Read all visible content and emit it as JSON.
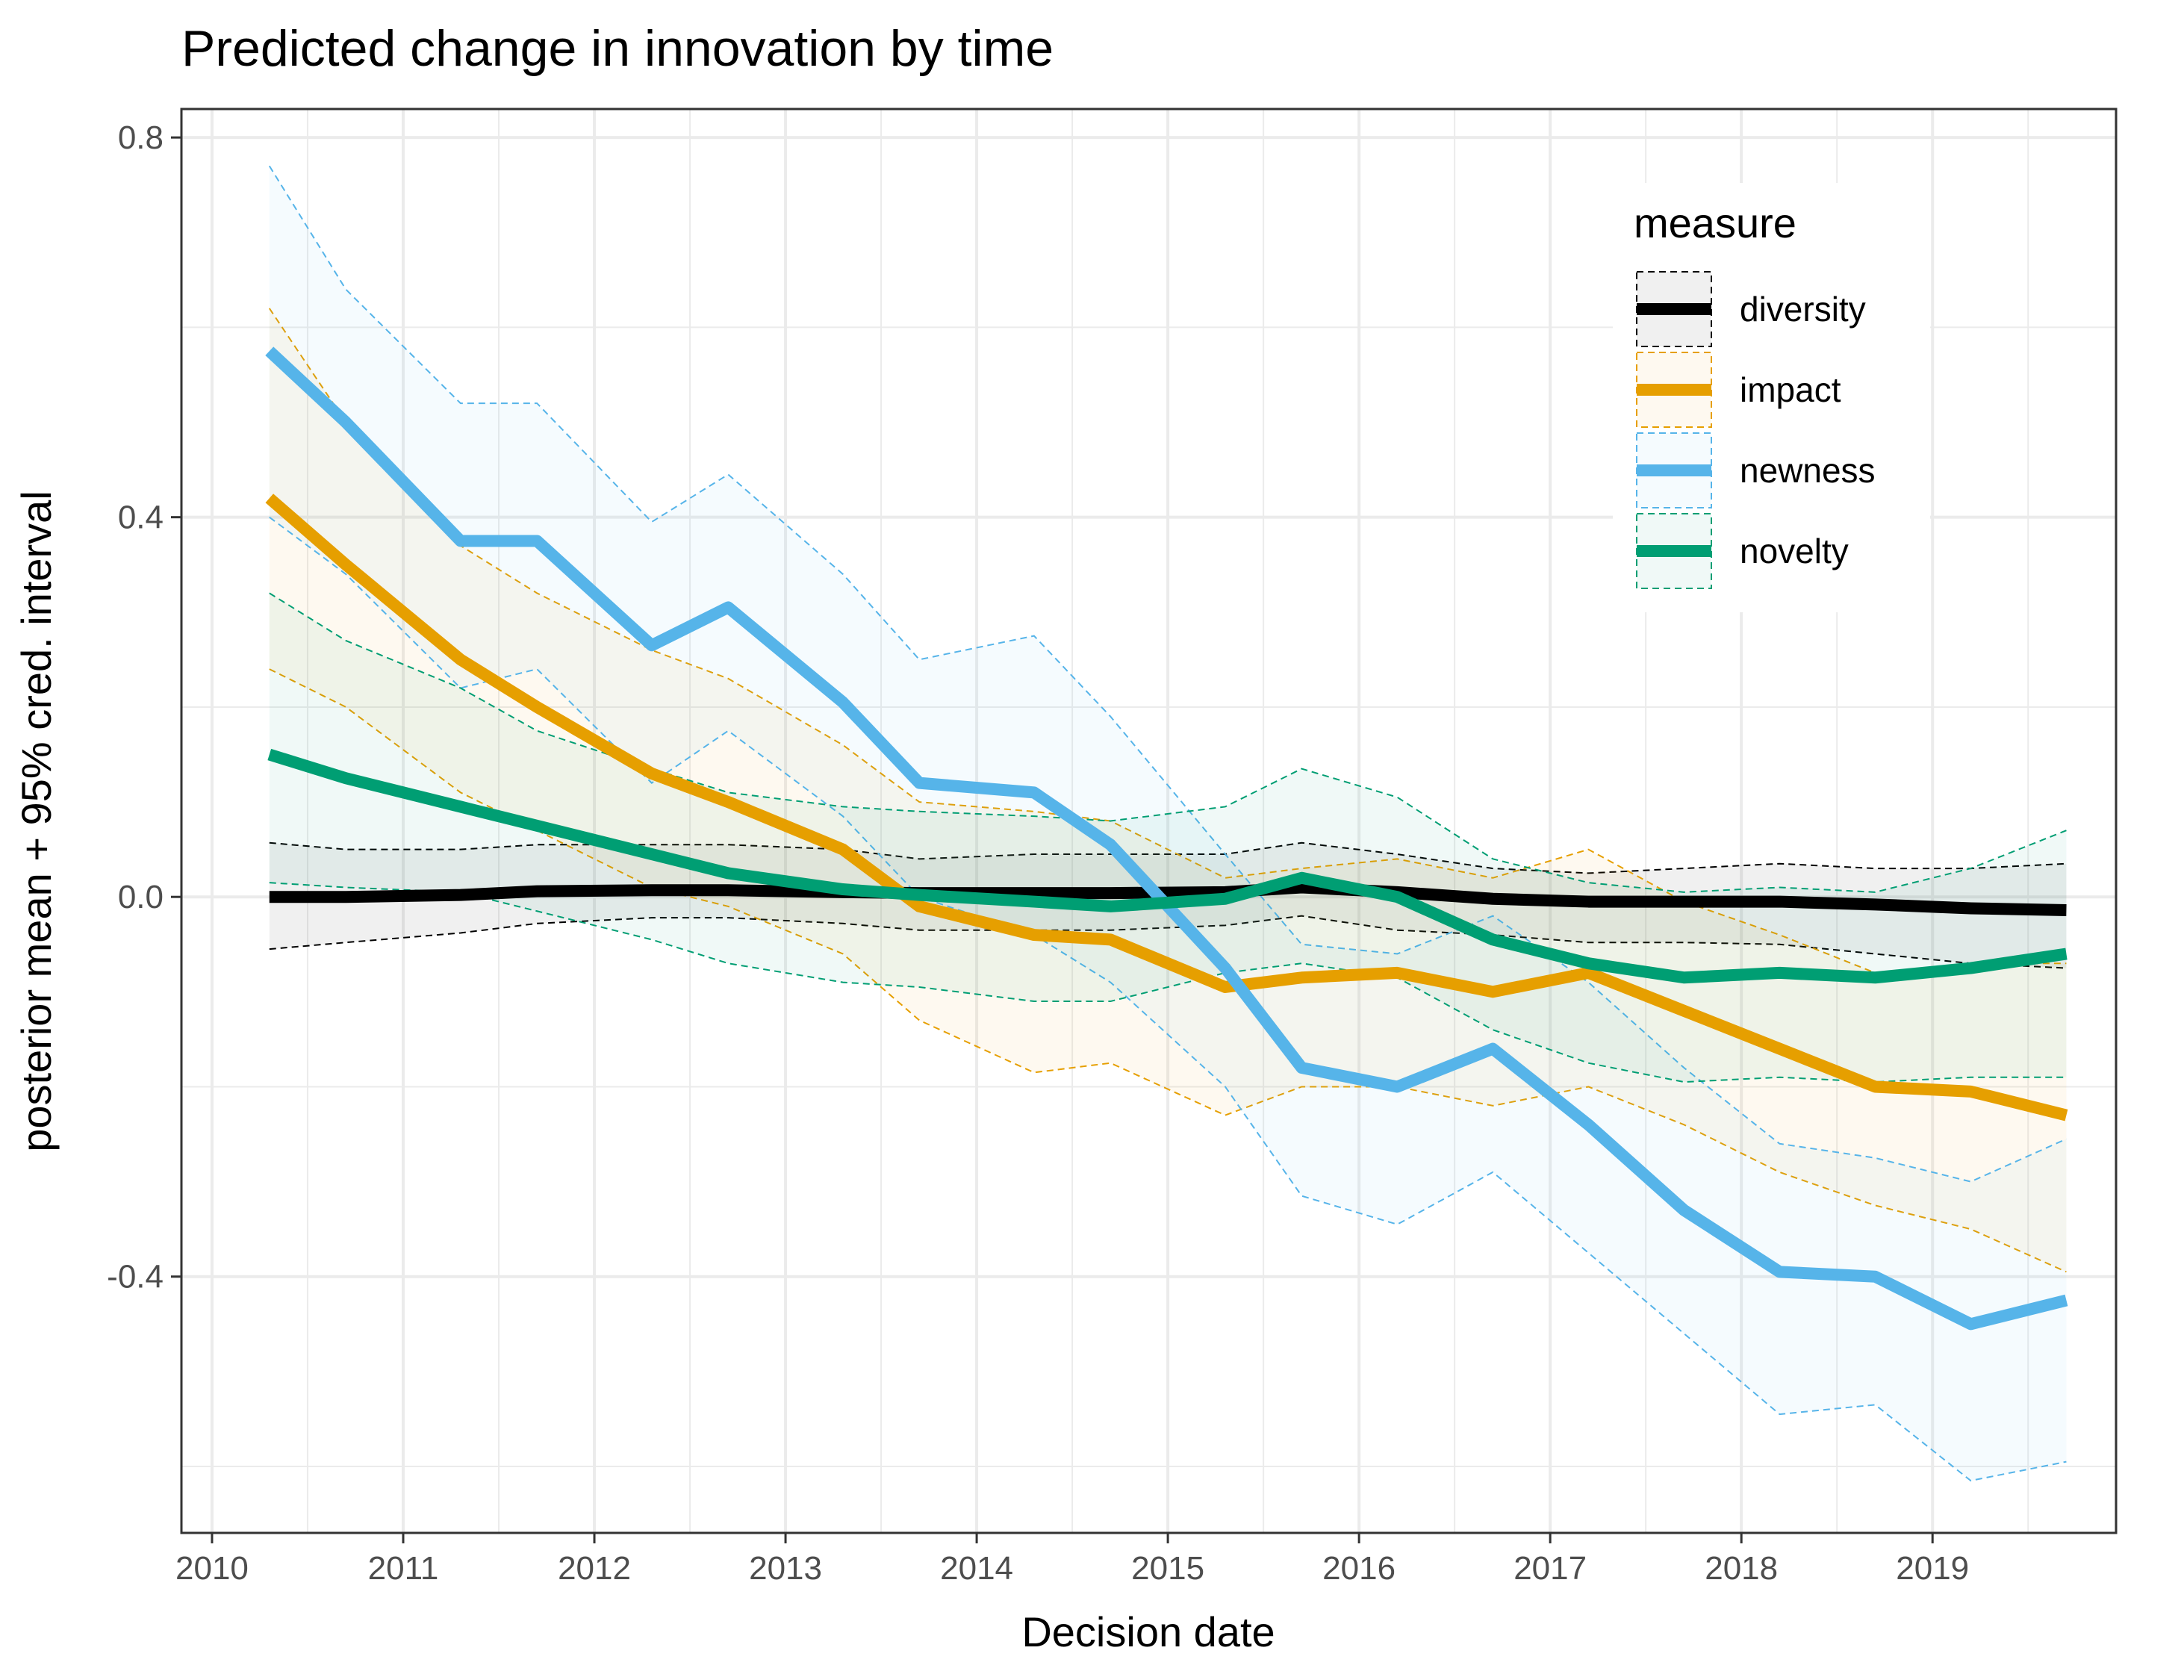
{
  "chart_data": {
    "type": "line",
    "title": "Predicted change in innovation by time",
    "xlabel": "Decision date",
    "ylabel": "posterior mean + 95% cred. interval",
    "xlim": [
      2009.84,
      2019.96
    ],
    "ylim": [
      -0.67,
      0.83
    ],
    "x_ticks": [
      "2010",
      "2011",
      "2012",
      "2013",
      "2014",
      "2015",
      "2016",
      "2017",
      "2018",
      "2019"
    ],
    "y_ticks": [
      "0.8",
      "0.4",
      "0.0",
      "-0.4"
    ],
    "y_tick_values": [
      0.8,
      0.4,
      0.0,
      -0.4
    ],
    "grid": true,
    "legend": {
      "title": "measure",
      "position": "top-right"
    },
    "x": [
      2010.3,
      2010.7,
      2011.3,
      2011.7,
      2012.3,
      2012.7,
      2013.3,
      2013.7,
      2014.3,
      2014.7,
      2015.3,
      2015.7,
      2016.2,
      2016.7,
      2017.2,
      2017.7,
      2018.2,
      2018.7,
      2019.2,
      2019.7
    ],
    "series": [
      {
        "name": "diversity",
        "color": "#000000",
        "mean": [
          0.0,
          0.0,
          0.002,
          0.006,
          0.007,
          0.007,
          0.005,
          0.004,
          0.004,
          0.004,
          0.005,
          0.01,
          0.005,
          -0.002,
          -0.005,
          -0.005,
          -0.005,
          -0.008,
          -0.012,
          -0.014
        ],
        "upper": [
          0.057,
          0.05,
          0.05,
          0.055,
          0.055,
          0.055,
          0.05,
          0.04,
          0.045,
          0.045,
          0.045,
          0.057,
          0.045,
          0.03,
          0.025,
          0.03,
          0.035,
          0.03,
          0.03,
          0.035
        ],
        "lower": [
          -0.055,
          -0.048,
          -0.038,
          -0.028,
          -0.022,
          -0.022,
          -0.028,
          -0.035,
          -0.035,
          -0.035,
          -0.03,
          -0.02,
          -0.035,
          -0.04,
          -0.048,
          -0.048,
          -0.05,
          -0.06,
          -0.07,
          -0.075
        ]
      },
      {
        "name": "impact",
        "color": "#E69F00",
        "mean": [
          0.42,
          0.35,
          0.25,
          0.2,
          0.13,
          0.1,
          0.05,
          -0.01,
          -0.04,
          -0.045,
          -0.095,
          -0.085,
          -0.08,
          -0.1,
          -0.08,
          -0.12,
          -0.16,
          -0.2,
          -0.205,
          -0.23
        ],
        "upper": [
          0.62,
          0.5,
          0.37,
          0.32,
          0.26,
          0.23,
          0.16,
          0.1,
          0.09,
          0.08,
          0.02,
          0.03,
          0.04,
          0.02,
          0.05,
          -0.005,
          -0.04,
          -0.08,
          -0.07,
          -0.07
        ],
        "lower": [
          0.24,
          0.2,
          0.11,
          0.07,
          0.01,
          -0.01,
          -0.06,
          -0.13,
          -0.185,
          -0.175,
          -0.23,
          -0.2,
          -0.2,
          -0.22,
          -0.2,
          -0.24,
          -0.29,
          -0.325,
          -0.35,
          -0.395
        ]
      },
      {
        "name": "newness",
        "color": "#56B4E9",
        "mean": [
          0.575,
          0.5,
          0.375,
          0.375,
          0.265,
          0.305,
          0.205,
          0.12,
          0.11,
          0.055,
          -0.075,
          -0.18,
          -0.2,
          -0.16,
          -0.24,
          -0.33,
          -0.395,
          -0.4,
          -0.45,
          -0.425
        ],
        "upper": [
          0.77,
          0.64,
          0.52,
          0.52,
          0.395,
          0.445,
          0.34,
          0.25,
          0.275,
          0.19,
          0.045,
          -0.05,
          -0.06,
          -0.02,
          -0.09,
          -0.18,
          -0.26,
          -0.275,
          -0.3,
          -0.255
        ],
        "lower": [
          0.4,
          0.34,
          0.22,
          0.24,
          0.12,
          0.175,
          0.085,
          0.0,
          -0.04,
          -0.09,
          -0.2,
          -0.315,
          -0.345,
          -0.29,
          -0.375,
          -0.46,
          -0.545,
          -0.535,
          -0.615,
          -0.595
        ]
      },
      {
        "name": "novelty",
        "color": "#009E73",
        "mean": [
          0.15,
          0.125,
          0.095,
          0.075,
          0.045,
          0.025,
          0.008,
          0.002,
          -0.005,
          -0.01,
          -0.002,
          0.02,
          0.0,
          -0.045,
          -0.07,
          -0.085,
          -0.08,
          -0.085,
          -0.075,
          -0.06
        ],
        "upper": [
          0.32,
          0.27,
          0.22,
          0.175,
          0.135,
          0.11,
          0.095,
          0.09,
          0.085,
          0.08,
          0.095,
          0.135,
          0.105,
          0.04,
          0.015,
          0.005,
          0.01,
          0.005,
          0.03,
          0.07
        ],
        "lower": [
          0.015,
          0.01,
          0.005,
          -0.015,
          -0.045,
          -0.07,
          -0.09,
          -0.095,
          -0.11,
          -0.11,
          -0.08,
          -0.07,
          -0.085,
          -0.14,
          -0.175,
          -0.195,
          -0.19,
          -0.195,
          -0.19,
          -0.19
        ]
      }
    ]
  }
}
